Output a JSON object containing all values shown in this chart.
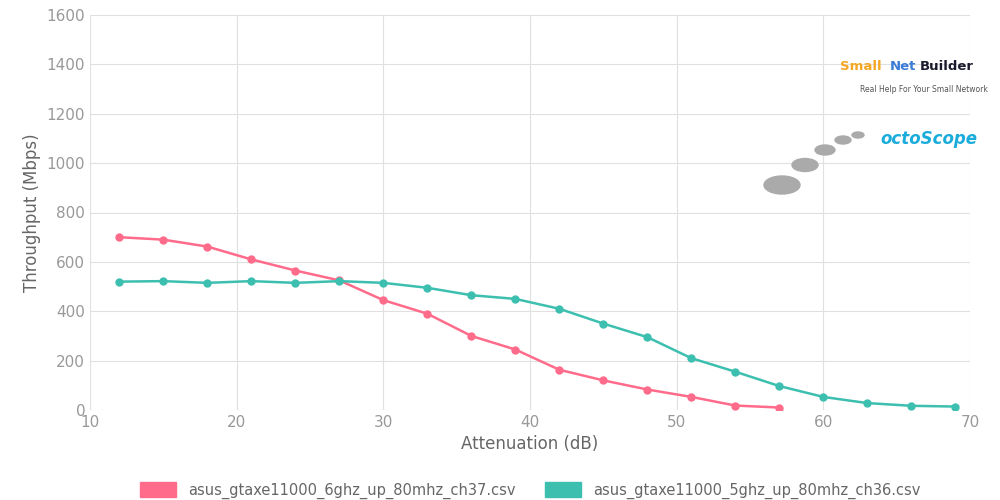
{
  "six_ghz_x": [
    12,
    15,
    18,
    21,
    24,
    27,
    30,
    33,
    36,
    39,
    42,
    45,
    48,
    51,
    54,
    57
  ],
  "six_ghz_y": [
    700,
    690,
    662,
    610,
    565,
    525,
    445,
    390,
    300,
    245,
    163,
    120,
    83,
    53,
    18,
    10
  ],
  "five_ghz_x": [
    12,
    15,
    18,
    21,
    24,
    27,
    30,
    33,
    36,
    39,
    42,
    45,
    48,
    51,
    54,
    57,
    60,
    63,
    66,
    69
  ],
  "five_ghz_y": [
    520,
    522,
    515,
    522,
    515,
    522,
    515,
    495,
    465,
    450,
    410,
    350,
    295,
    210,
    155,
    97,
    53,
    28,
    17,
    14
  ],
  "six_ghz_color": "#FF6B8A",
  "five_ghz_color": "#3DBFB0",
  "six_ghz_label": "asus_gtaxe11000_6ghz_up_80mhz_ch37.csv",
  "five_ghz_label": "asus_gtaxe11000_5ghz_up_80mhz_ch36.csv",
  "xlabel": "Attenuation (dB)",
  "ylabel": "Throughput (Mbps)",
  "xlim": [
    10,
    70
  ],
  "ylim": [
    0,
    1600
  ],
  "yticks": [
    0,
    200,
    400,
    600,
    800,
    1000,
    1200,
    1400,
    1600
  ],
  "xticks": [
    10,
    20,
    30,
    40,
    50,
    60,
    70
  ],
  "bg_color": "#ffffff",
  "grid_color": "#e0e0e0",
  "marker": "o",
  "marker_size": 5,
  "line_width": 1.8,
  "tick_color": "#999999",
  "label_color": "#666666",
  "tick_fontsize": 11,
  "label_fontsize": 12
}
